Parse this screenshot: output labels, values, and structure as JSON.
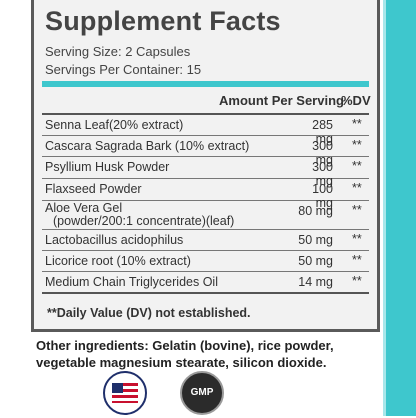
{
  "title": "Supplement Facts",
  "serving_size": "Serving Size: 2 Capsules",
  "servings_per_container": "Servings Per Container: 15",
  "columns": {
    "amount": "Amount Per Serving",
    "dv": "%DV"
  },
  "rows": [
    {
      "name": "Senna Leaf(20% extract)",
      "amount": "285 mg",
      "dv": "**"
    },
    {
      "name": "Cascara Sagrada Bark (10% extract)",
      "amount": "300 mg",
      "dv": "**"
    },
    {
      "name": "Psyllium Husk Powder",
      "amount": "300 mg",
      "dv": "**"
    },
    {
      "name": "Flaxseed Powder",
      "amount": "100 mg",
      "dv": "**"
    },
    {
      "name": "Aloe Vera Gel",
      "name_line2": "(powder/200:1 concentrate)(leaf)",
      "amount": "80 mg",
      "dv": "**"
    },
    {
      "name": "Lactobacillus acidophilus",
      "amount": "50 mg",
      "dv": "**"
    },
    {
      "name": "Licorice root (10% extract)",
      "amount": "50 mg",
      "dv": "**"
    },
    {
      "name": "Medium Chain Triglycerides Oil",
      "amount": "14 mg",
      "dv": "**"
    }
  ],
  "footnote": "**Daily Value (DV) not established.",
  "other_ingredients": "Other ingredients: Gelatin (bovine), rice powder, vegetable magnesium stearate, silicon dioxide.",
  "badges": {
    "gmp_label": "GMP",
    "usa_icon": "made-in-usa-flag-seal",
    "gmp_icon": "gmp-certified-seal"
  },
  "colors": {
    "accent": "#3ec7cd",
    "panel_bg": "#f2f2f2",
    "border": "#5a5a5a"
  }
}
